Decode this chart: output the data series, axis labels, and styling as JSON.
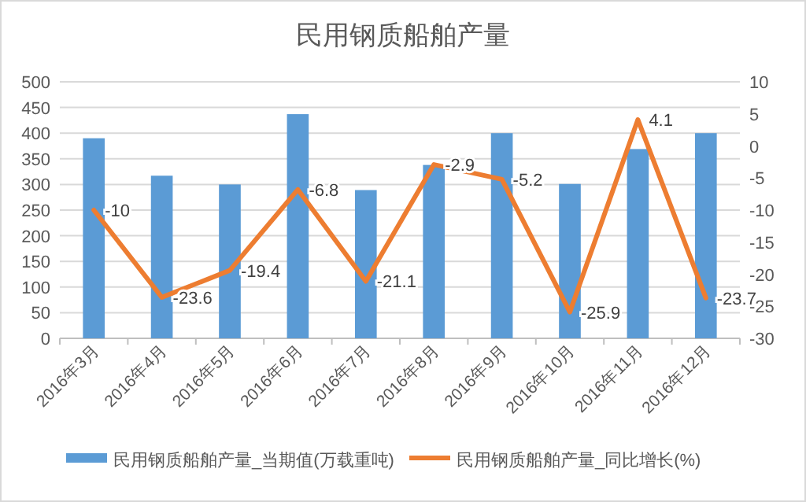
{
  "chart_data": {
    "type": "bar",
    "title": "民用钢质船舶产量",
    "categories": [
      "2016年3月",
      "2016年4月",
      "2016年5月",
      "2016年6月",
      "2016年7月",
      "2016年8月",
      "2016年9月",
      "2016年10月",
      "2016年11月",
      "2016年12月"
    ],
    "series": [
      {
        "name": "民用钢质船舶产量_当期值(万载重吨)",
        "color": "#5b9bd5",
        "values": [
          390,
          317,
          300,
          437,
          289,
          338,
          400,
          301,
          369,
          400
        ]
      },
      {
        "name": "民用钢质船舶产量_同比增长(%)",
        "type": "line",
        "axis": "y2",
        "color": "#ed7d31",
        "values": [
          -10,
          -23.6,
          -19.4,
          -6.8,
          -21.1,
          -2.9,
          -5.2,
          -25.9,
          4.1,
          -23.7
        ],
        "data_labels": true
      }
    ],
    "ylim": [
      0,
      500
    ],
    "yticks": [
      0,
      50,
      100,
      150,
      200,
      250,
      300,
      350,
      400,
      450,
      500
    ],
    "y2lim": [
      -30,
      10
    ],
    "y2ticks": [
      -30,
      -25,
      -20,
      -15,
      -10,
      -5,
      0,
      5,
      10
    ],
    "grid": "y",
    "legend": "bottom",
    "marker": "none",
    "line_style": "solid"
  }
}
